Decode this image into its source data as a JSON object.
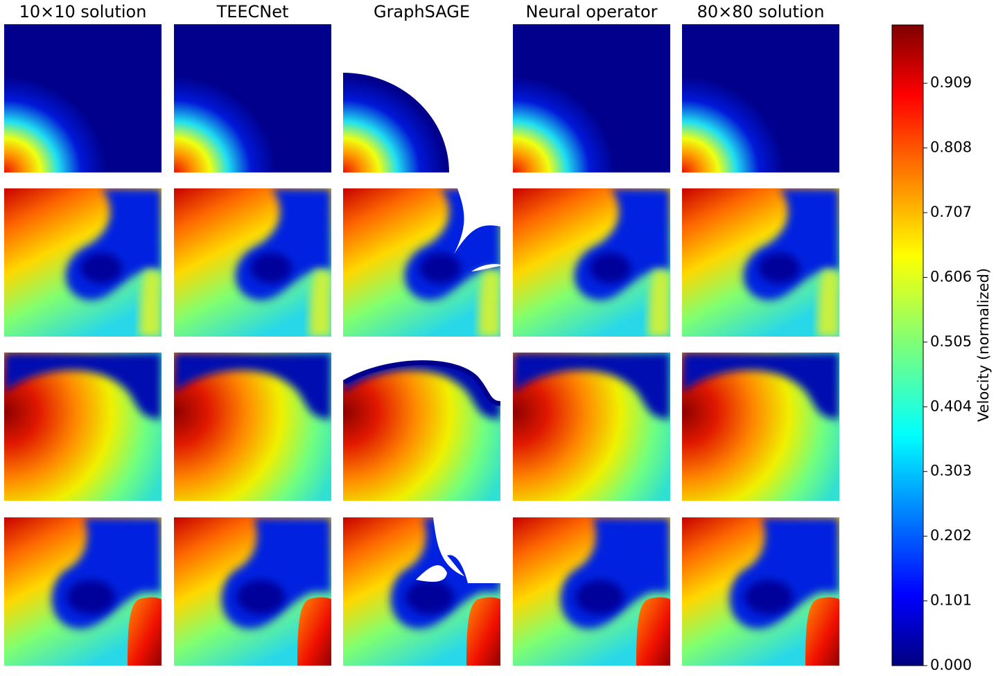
{
  "chart_data": {
    "type": "heatmap",
    "columns": [
      "10×10 solution",
      "TEECNet",
      "GraphSAGE",
      "Neural operator",
      "80×80 solution"
    ],
    "colorbar_label": "Velocity (normalized)",
    "colormap": "jet",
    "ylim": [
      0,
      1
    ],
    "yticks": [
      {
        "value": 0,
        "label": "0.000"
      },
      0.101,
      0.202,
      0.303,
      0.404,
      0.505,
      0.606,
      0.707,
      0.808,
      0.909
    ]
  }
}
